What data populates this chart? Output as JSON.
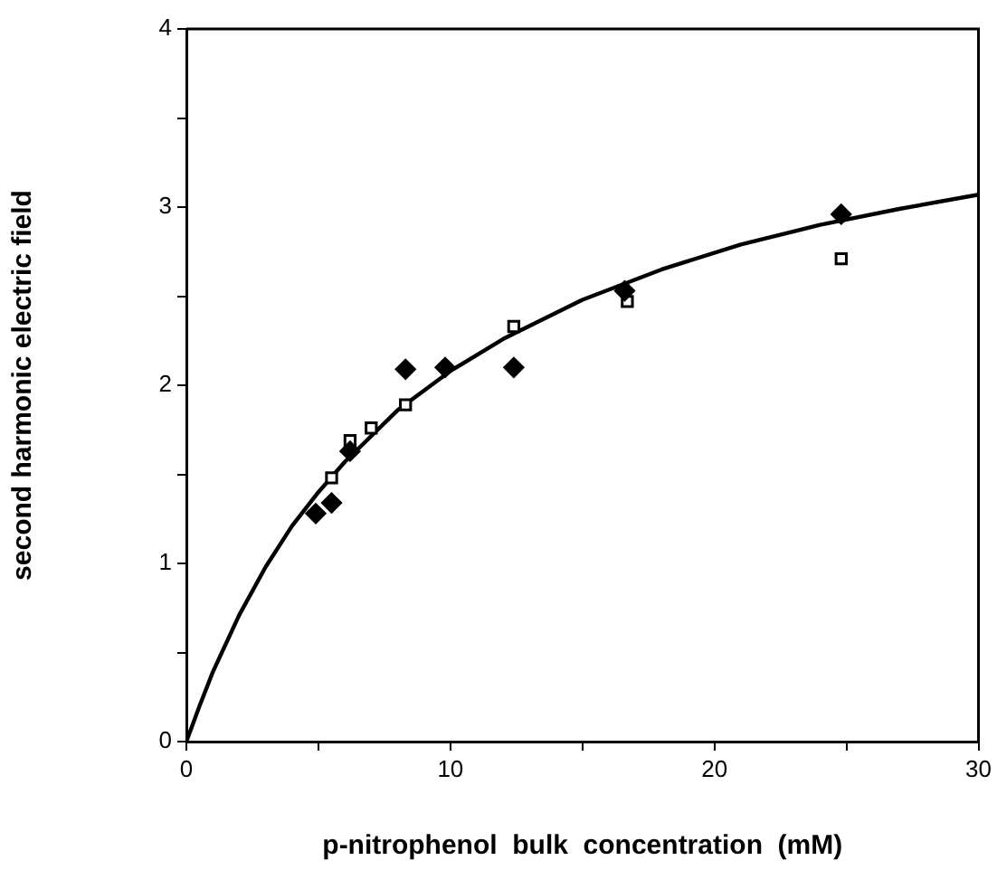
{
  "chart_data": {
    "type": "scatter",
    "xlabel": "p-nitrophenol  bulk  concentration  (mM)",
    "ylabel": "second harmonic electric field",
    "xlim": [
      0,
      30
    ],
    "xticks": [
      0,
      {
        "value": 5,
        "label": null
      },
      10,
      {
        "value": 15,
        "label": null
      },
      20,
      {
        "value": 25,
        "label": null
      },
      30
    ],
    "ylim": [
      0,
      4
    ],
    "yticks": [
      0,
      {
        "value": 0.5,
        "label": null
      },
      1,
      {
        "value": 1.5,
        "label": null
      },
      2,
      {
        "value": 2.5,
        "label": null
      },
      3,
      {
        "value": 3.5,
        "label": null
      },
      4
    ],
    "grid": false,
    "legend": false,
    "series": [
      {
        "type": "scatter",
        "marker": "diamond",
        "color": "#000000",
        "x": [
          4.9,
          5.5,
          6.2,
          8.3,
          9.8,
          12.4,
          16.6,
          24.8
        ],
        "values": [
          1.28,
          1.34,
          1.63,
          2.09,
          2.1,
          2.1,
          2.53,
          2.96
        ]
      },
      {
        "type": "scatter",
        "marker": "square",
        "color": "#000000",
        "x": [
          5.5,
          6.2,
          7.0,
          8.3,
          12.4,
          16.7,
          24.8
        ],
        "values": [
          1.48,
          1.69,
          1.76,
          1.89,
          2.33,
          2.47,
          2.71
        ]
      },
      {
        "type": "line",
        "marker": "none",
        "line_style": "solid",
        "color": "#000000",
        "x": [
          0,
          0.5,
          1,
          2,
          3,
          4,
          5,
          6,
          8,
          10,
          12,
          15,
          18,
          21,
          24,
          27,
          30
        ],
        "values": [
          0,
          0.2,
          0.39,
          0.71,
          0.98,
          1.21,
          1.4,
          1.57,
          1.86,
          2.08,
          2.26,
          2.48,
          2.65,
          2.79,
          2.9,
          2.99,
          3.07
        ]
      }
    ]
  }
}
